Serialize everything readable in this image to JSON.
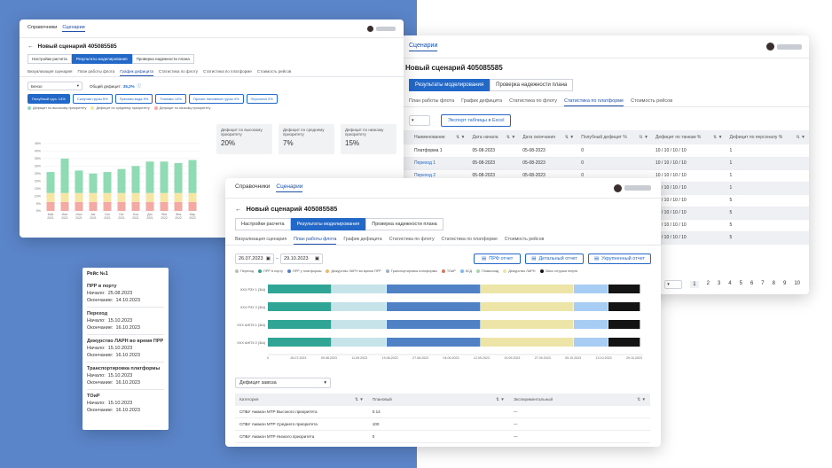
{
  "colors": {
    "blue": "#2168c9",
    "bar_green": "#8fdbb4",
    "bar_yellow": "#f6e6a4",
    "bar_pink": "#f4aaa4",
    "seg_teal": "#30a596",
    "seg_lightblue": "#c7e3ea",
    "seg_blue": "#4f81c4",
    "seg_yellow": "#ece5a7",
    "seg_sky": "#a7cdf4",
    "seg_black": "#141414"
  },
  "nav": {
    "refs": "Справочники",
    "scenarios": "Сценарии"
  },
  "scenario_title": "Новый сценарий 405085585",
  "main_tabs": [
    "Настройки расчета",
    "Результаты моделирования",
    "Проверка надежности плана"
  ],
  "sub_tabs": [
    "Визуализация сценария",
    "План работы флота",
    "График дефицита",
    "Статистика по флоту",
    "Статистика по платформе",
    "Стоимость рейсов"
  ],
  "win1": {
    "select_value": "Бензо",
    "total_deficit_label": "Общий дефицит:",
    "total_deficit_value": "35,2%",
    "chips": [
      "Полубный груз. 14%",
      "Сыпучие грузы 5%",
      "Пресная вода 9%",
      "Топливо 14%",
      "Прочие наливные грузы 4%",
      "Персонал 2%"
    ],
    "legend": [
      "Дефицит по высокому приоритету",
      "Дефицит по среднему приоритету",
      "Дефицит по низкому приоритету"
    ],
    "cards": [
      {
        "label": "Дефицит по высокому приоритету",
        "value": "20%"
      },
      {
        "label": "Дефицит по среднему приоритету",
        "value": "7%"
      },
      {
        "label": "Дефицит по низкому приоритету",
        "value": "15%"
      }
    ]
  },
  "chart_data": {
    "type": "bar",
    "categories": [
      "Май 2021",
      "Июн 2021",
      "Июл 2021",
      "Авг 2021",
      "Сен 2021",
      "Окт 2021",
      "Ноя 2021",
      "Дек 2021",
      "Янв 2022",
      "Фев 2022",
      "Мар 2022"
    ],
    "yticks": [
      "0%",
      "5%",
      "10%",
      "15%",
      "20%",
      "25%",
      "30%",
      "35%",
      "40%",
      "45%"
    ],
    "ylim": [
      0,
      45
    ],
    "series": [
      {
        "name": "Дефицит по низкому приоритету",
        "values": [
          6,
          6,
          6,
          6,
          6,
          6,
          6,
          6,
          6,
          6,
          6
        ]
      },
      {
        "name": "Дефицит по среднему приоритету",
        "values": [
          6,
          6,
          6,
          6,
          6,
          6,
          6,
          6,
          6,
          6,
          6
        ]
      },
      {
        "name": "Дефицит по высокому приоритету",
        "values": [
          14,
          23,
          15,
          13,
          14,
          16,
          18,
          21,
          21,
          20,
          22
        ]
      }
    ]
  },
  "win2": {
    "export_button": "Экспорт таблицы в Excel",
    "columns": [
      "Наименование",
      "Дата начала",
      "Дата окончания",
      "Полубный дефицит %",
      "Дефицит по танкам %",
      "Дефицит по персоналу %"
    ],
    "rows": [
      [
        "Платформа 1",
        "05-08-2023",
        "05-08-2023",
        "0",
        "10 / 10 / 10 / 10",
        "1"
      ],
      [
        "Переход 1",
        "05-08-2023",
        "05-08-2023",
        "0",
        "10 / 10 / 10 / 10",
        "1"
      ],
      [
        "Переход 2",
        "05-08-2023",
        "05-08-2023",
        "0",
        "10 / 10 / 10 / 10",
        "1"
      ],
      [
        "",
        "05-08-2023",
        "05-08-2023",
        "0",
        "10 / 10 / 10 / 10",
        "1"
      ],
      [
        "",
        "",
        "",
        "",
        "10 / 10 / 10 / 10",
        "5"
      ],
      [
        "",
        "",
        "",
        "",
        "10 / 10 / 10 / 10",
        "5"
      ],
      [
        "",
        "",
        "",
        "",
        "10 / 10 / 10 / 10",
        "5"
      ],
      [
        "",
        "",
        "",
        "",
        "10 / 10 / 10 / 10",
        "5"
      ]
    ],
    "pages": [
      "1",
      "2",
      "3",
      "4",
      "5",
      "6",
      "7",
      "8",
      "9",
      "10"
    ]
  },
  "win3": {
    "date_from": "26.07.2023",
    "date_to": "29.10.2023",
    "btn_prf": "ПРФ отчет",
    "btn_detail": "Детальный отчет",
    "btn_summary": "Укрупненный отчет",
    "legend": [
      "Переход",
      "ПРР в порту",
      "ПРР у платформы",
      "Дежурство ЛАРН во время ПРР",
      "Транспортировка платформы",
      "ТОиР",
      "КСД",
      "Плавсклад",
      "Дежурство ЛАРН",
      "Окна отгрузки нефти"
    ],
    "vessels": [
      "ХХХ РЗУ 1 (3Ш)",
      "ХХХ РЗУ 2 (3Ш)",
      "ХХХ АНПЭ 1 (3Ш)",
      "ХХХ АНПЭ 2 (3Ш)"
    ],
    "axis_dates": [
      "0",
      "26.07.2023",
      "09.08.2023",
      "11.09.2023",
      "19.08.2023",
      "27.08.2023",
      "04.09.2023",
      "12.09.2023",
      "19.09.2023",
      "27.09.2023",
      "05.10.2023",
      "13.10.2023",
      "29.10.2023"
    ],
    "deficit_select": "Дефицит завоза",
    "table_columns": [
      "Категория",
      "Плановый",
      "Экспериментальный"
    ],
    "table_rows": [
      [
        "СПБУ Амакон МТР Высокого приоритета",
        "0.14",
        "—"
      ],
      [
        "СПБУ Амакон МТР Среднего приоритета",
        "100",
        "—"
      ],
      [
        "СПБУ Амакон МТР Низкого приоритета",
        "0",
        "—"
      ]
    ]
  },
  "tooltip": {
    "title": "Рейс №1",
    "start_label": "Начало:",
    "end_label": "Окончание:",
    "items": [
      {
        "name": "ПРР в порту",
        "start": "25.08.2023",
        "end": "14.10.2023"
      },
      {
        "name": "Переход",
        "start": "15.10.2023",
        "end": "16.10.2023"
      },
      {
        "name": "Дежурство ЛАРН во время ПРР",
        "start": "15.10.2023",
        "end": "16.10.2023"
      },
      {
        "name": "Транспортировка платформы",
        "start": "15.10.2023",
        "end": "16.10.2023"
      },
      {
        "name": "ТОиР",
        "start": "15.10.2023",
        "end": "16.10.2023"
      }
    ]
  }
}
